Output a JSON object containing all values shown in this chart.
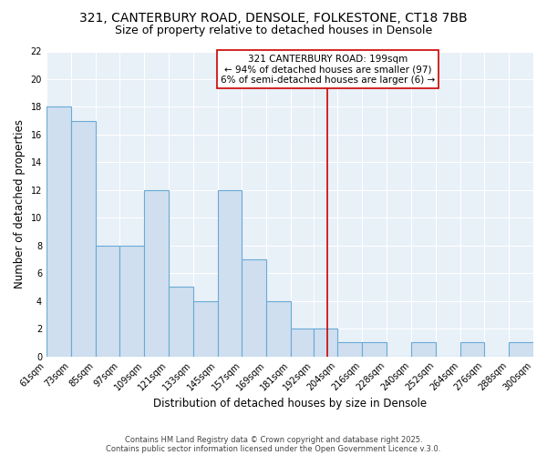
{
  "title1": "321, CANTERBURY ROAD, DENSOLE, FOLKESTONE, CT18 7BB",
  "title2": "Size of property relative to detached houses in Densole",
  "xlabel": "Distribution of detached houses by size in Densole",
  "ylabel": "Number of detached properties",
  "bin_edges": [
    61,
    73,
    85,
    97,
    109,
    121,
    133,
    145,
    157,
    169,
    181,
    192,
    204,
    216,
    228,
    240,
    252,
    264,
    276,
    288,
    300
  ],
  "bar_heights": [
    18,
    17,
    8,
    8,
    12,
    5,
    4,
    12,
    7,
    4,
    2,
    2,
    1,
    1,
    0,
    1,
    0,
    1,
    0,
    1
  ],
  "bar_color": "#cfdff0",
  "bar_edgecolor": "#6aaad4",
  "bar_linewidth": 0.8,
  "vline_x": 199,
  "vline_color": "#cc0000",
  "vline_linewidth": 1.2,
  "annotation_title": "321 CANTERBURY ROAD: 199sqm",
  "annotation_line2": "← 94% of detached houses are smaller (97)",
  "annotation_line3": "6% of semi-detached houses are larger (6) →",
  "annotation_box_color": "white",
  "annotation_edgecolor": "#cc0000",
  "ylim": [
    0,
    22
  ],
  "yticks": [
    0,
    2,
    4,
    6,
    8,
    10,
    12,
    14,
    16,
    18,
    20,
    22
  ],
  "tick_labels": [
    "61sqm",
    "73sqm",
    "85sqm",
    "97sqm",
    "109sqm",
    "121sqm",
    "133sqm",
    "145sqm",
    "157sqm",
    "169sqm",
    "181sqm",
    "192sqm",
    "204sqm",
    "216sqm",
    "228sqm",
    "240sqm",
    "252sqm",
    "264sqm",
    "276sqm",
    "288sqm",
    "300sqm"
  ],
  "background_color": "#e8f0f8",
  "grid_color": "#ffffff",
  "footer_line1": "Contains HM Land Registry data © Crown copyright and database right 2025.",
  "footer_line2": "Contains public sector information licensed under the Open Government Licence v.3.0.",
  "title_fontsize": 10,
  "subtitle_fontsize": 9,
  "axis_label_fontsize": 8.5,
  "tick_fontsize": 7,
  "annotation_fontsize": 7.5,
  "footer_fontsize": 6
}
